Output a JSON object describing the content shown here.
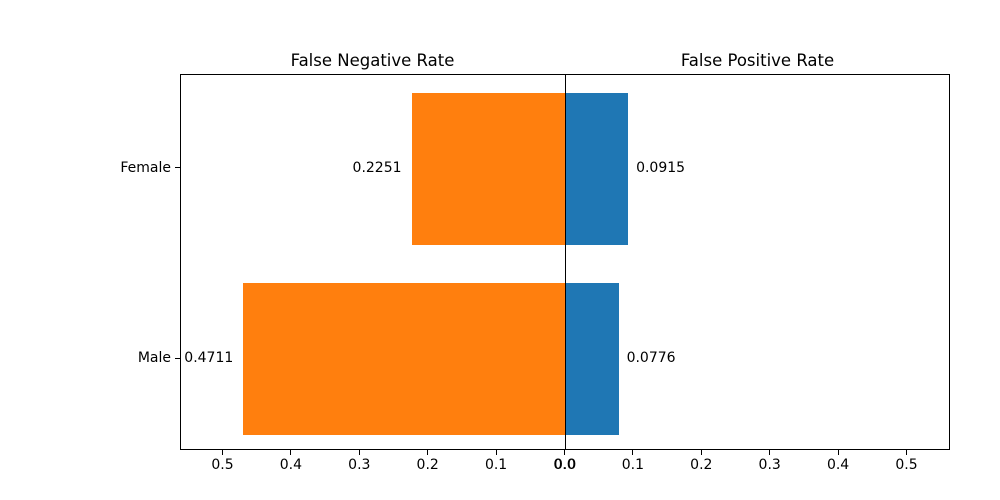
{
  "figure": {
    "background": "#ffffff"
  },
  "chart_data": {
    "type": "bar",
    "variant": "diverging-horizontal",
    "titles": {
      "left": "False Negative Rate",
      "right": "False Positive Rate"
    },
    "categories": [
      "Female",
      "Male"
    ],
    "series": [
      {
        "name": "False Negative Rate",
        "side": "left",
        "color": "#ff7f0e",
        "values": [
          0.2251,
          0.4711
        ],
        "labels": [
          "0.2251",
          "0.4711"
        ]
      },
      {
        "name": "False Positive Rate",
        "side": "right",
        "color": "#1f77b4",
        "values": [
          0.0915,
          0.0776
        ],
        "labels": [
          "0.0915",
          "0.0776"
        ]
      }
    ],
    "x_axis": {
      "tick_values": [
        -0.5,
        -0.4,
        -0.3,
        -0.2,
        -0.1,
        0,
        0.1,
        0.2,
        0.3,
        0.4,
        0.5
      ],
      "tick_labels": [
        "0.5",
        "0.4",
        "0.3",
        "0.2",
        "0.1",
        "0.0",
        "0.1",
        "0.2",
        "0.3",
        "0.4",
        "0.5"
      ],
      "xlim": [
        -0.565,
        0.565
      ]
    },
    "zero_line": true,
    "grid": false,
    "axis_color": "#000000"
  }
}
